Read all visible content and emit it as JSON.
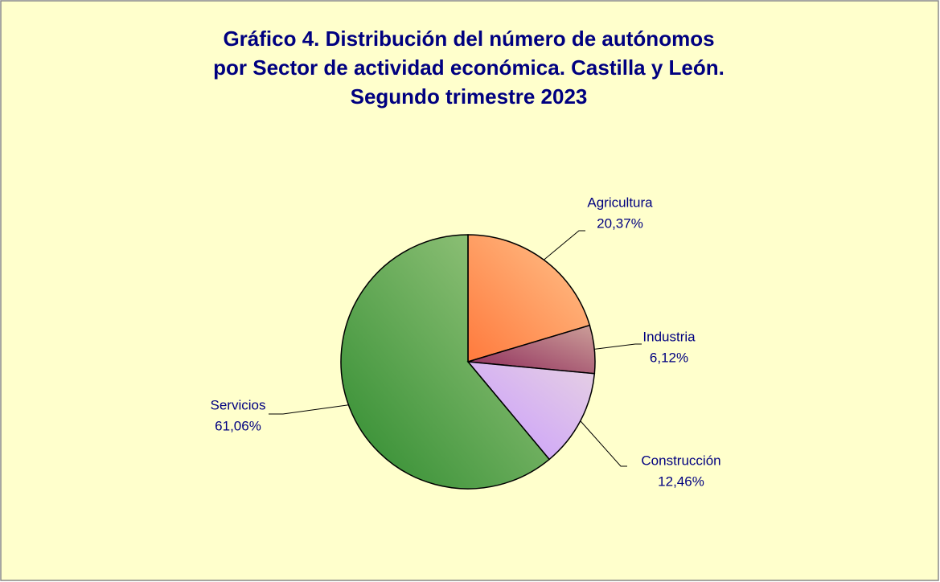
{
  "chart_data": {
    "type": "pie",
    "title": [
      "Gráfico 4. Distribución del número de autónomos",
      "por Sector de actividad económica. Castilla y León.",
      "Segundo trimestre 2023"
    ],
    "categories": [
      "Agricultura",
      "Industria",
      "Construcción",
      "Servicios"
    ],
    "values": [
      20.37,
      6.12,
      12.46,
      61.06
    ],
    "value_labels": [
      "20,37%",
      "6,12%",
      "12,46%",
      "61,06%"
    ],
    "colors": [
      "#ff7a3d",
      "#8e2a5a",
      "#c899ff",
      "#2e8b2e"
    ]
  }
}
